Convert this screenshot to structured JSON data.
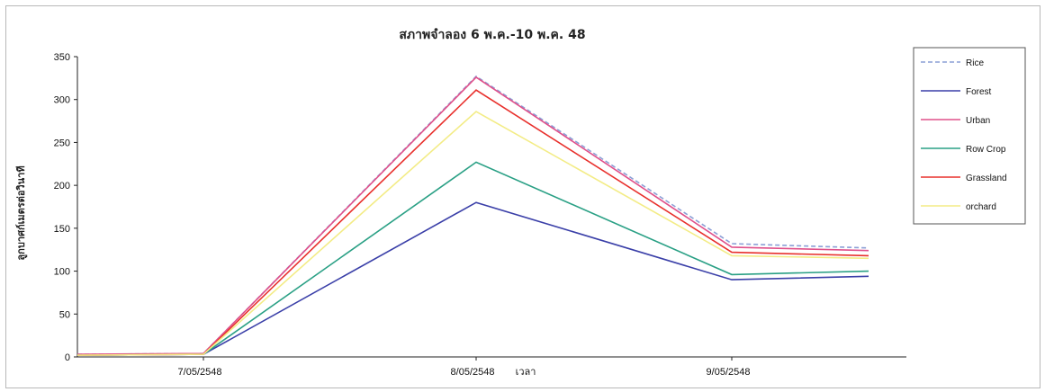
{
  "chart_data": {
    "type": "line",
    "title": "สภาพจำลอง 6 พ.ค.-10 พ.ค. 48",
    "ylabel": "ลูกบาศก์เมตรต่อวินาที",
    "xlabel": "เวลา",
    "ylim": [
      0,
      350
    ],
    "yticks": [
      0,
      50,
      100,
      150,
      200,
      250,
      300,
      350
    ],
    "x_tick_labels": [
      "7/05/2548",
      "8/05/2548",
      "9/05/2548"
    ],
    "x": [
      0,
      1,
      2,
      3,
      4
    ],
    "grid": false,
    "legend_position": "right",
    "series": [
      {
        "name": "Rice",
        "color": "#8c9fd6",
        "dash": true,
        "values": [
          3,
          4,
          327,
          132,
          127
        ]
      },
      {
        "name": "Forest",
        "color": "#3a3fa8",
        "dash": false,
        "values": [
          2,
          3,
          180,
          90,
          94
        ]
      },
      {
        "name": "Urban",
        "color": "#e0508a",
        "dash": false,
        "values": [
          3,
          4,
          326,
          128,
          124
        ]
      },
      {
        "name": "Row Crop",
        "color": "#2aa085",
        "dash": false,
        "values": [
          2,
          3,
          227,
          96,
          100
        ]
      },
      {
        "name": "Grassland",
        "color": "#e8302c",
        "dash": false,
        "values": [
          2,
          3,
          311,
          122,
          118
        ]
      },
      {
        "name": "orchard",
        "color": "#f3ec86",
        "dash": false,
        "values": [
          2,
          3,
          286,
          118,
          115
        ]
      }
    ]
  }
}
